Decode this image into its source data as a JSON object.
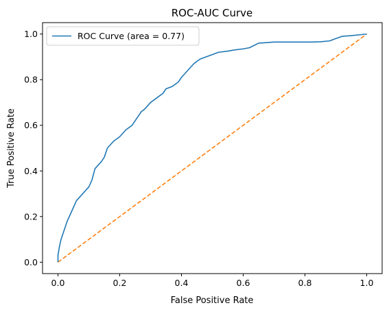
{
  "chart_data": {
    "type": "line",
    "title": "ROC-AUC Curve",
    "xlabel": "False Positive Rate",
    "ylabel": "True Positive Rate",
    "xlim": [
      -0.05,
      1.05
    ],
    "ylim": [
      -0.05,
      1.05
    ],
    "xticks": [
      0.0,
      0.2,
      0.4,
      0.6,
      0.8,
      1.0
    ],
    "xtick_labels": [
      "0.0",
      "0.2",
      "0.4",
      "0.6",
      "0.8",
      "1.0"
    ],
    "yticks": [
      0.0,
      0.2,
      0.4,
      0.6,
      0.8,
      1.0
    ],
    "ytick_labels": [
      "0.0",
      "0.2",
      "0.4",
      "0.6",
      "0.8",
      "1.0"
    ],
    "grid": false,
    "legend_position": "top-left",
    "series": [
      {
        "name": "ROC Curve (area = 0.77)",
        "color": "#1f77b4",
        "style": "solid",
        "x": [
          0.0,
          0.0,
          0.005,
          0.01,
          0.02,
          0.03,
          0.04,
          0.05,
          0.06,
          0.08,
          0.1,
          0.11,
          0.12,
          0.14,
          0.15,
          0.16,
          0.18,
          0.2,
          0.22,
          0.24,
          0.26,
          0.27,
          0.28,
          0.3,
          0.32,
          0.34,
          0.35,
          0.37,
          0.39,
          0.4,
          0.42,
          0.44,
          0.46,
          0.48,
          0.5,
          0.52,
          0.55,
          0.57,
          0.6,
          0.62,
          0.65,
          0.7,
          0.75,
          0.8,
          0.82,
          0.85,
          0.88,
          0.9,
          0.92,
          0.95,
          0.98,
          1.0
        ],
        "y": [
          0.0,
          0.03,
          0.07,
          0.1,
          0.14,
          0.18,
          0.21,
          0.24,
          0.27,
          0.3,
          0.33,
          0.36,
          0.41,
          0.44,
          0.46,
          0.5,
          0.53,
          0.55,
          0.58,
          0.6,
          0.64,
          0.66,
          0.67,
          0.7,
          0.72,
          0.74,
          0.76,
          0.77,
          0.79,
          0.81,
          0.84,
          0.87,
          0.89,
          0.9,
          0.91,
          0.92,
          0.925,
          0.93,
          0.935,
          0.94,
          0.96,
          0.965,
          0.965,
          0.965,
          0.965,
          0.966,
          0.97,
          0.98,
          0.99,
          0.993,
          0.997,
          1.0
        ]
      },
      {
        "name": "",
        "color": "#ff7f0e",
        "style": "dashed",
        "x": [
          0.0,
          1.0
        ],
        "y": [
          0.0,
          1.0
        ]
      }
    ]
  }
}
